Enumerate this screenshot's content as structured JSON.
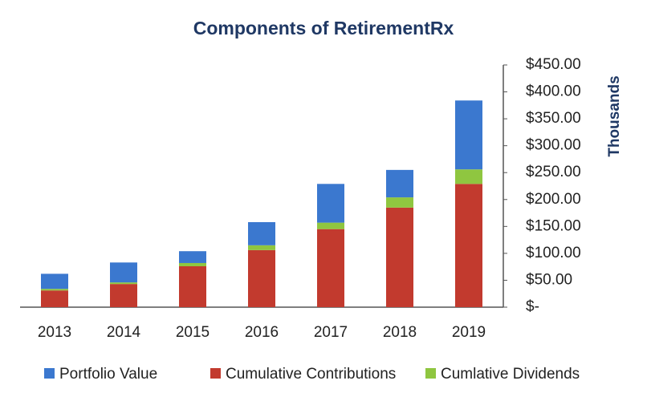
{
  "chart_data": {
    "type": "stacked_bar",
    "title": "Components of RetirementRx",
    "y_axis_label": "Thousands",
    "categories": [
      "2013",
      "2014",
      "2015",
      "2016",
      "2017",
      "2018",
      "2019"
    ],
    "series": [
      {
        "name": "Portfolio Value",
        "color": "#3b78cf",
        "values": [
          28,
          37,
          22,
          43,
          72,
          51,
          128
        ]
      },
      {
        "name": "Cumulative Contributions",
        "color": "#c23a2e",
        "values": [
          31,
          43,
          76,
          106,
          145,
          185,
          229
        ]
      },
      {
        "name": "Cumlative Dividends",
        "color": "#8fc640",
        "values": [
          3,
          3,
          6,
          9,
          12,
          19,
          27
        ]
      }
    ],
    "ylim": [
      0,
      450
    ],
    "yticks": [
      {
        "value": 0,
        "label": "$-"
      },
      {
        "value": 50,
        "label": "$50.00"
      },
      {
        "value": 100,
        "label": "$100.00"
      },
      {
        "value": 150,
        "label": "$150.00"
      },
      {
        "value": 200,
        "label": "$200.00"
      },
      {
        "value": 250,
        "label": "$250.00"
      },
      {
        "value": 300,
        "label": "$300.00"
      },
      {
        "value": 350,
        "label": "$350.00"
      },
      {
        "value": 400,
        "label": "$400.00"
      },
      {
        "value": 450,
        "label": "$450.00"
      }
    ],
    "grid": false
  }
}
